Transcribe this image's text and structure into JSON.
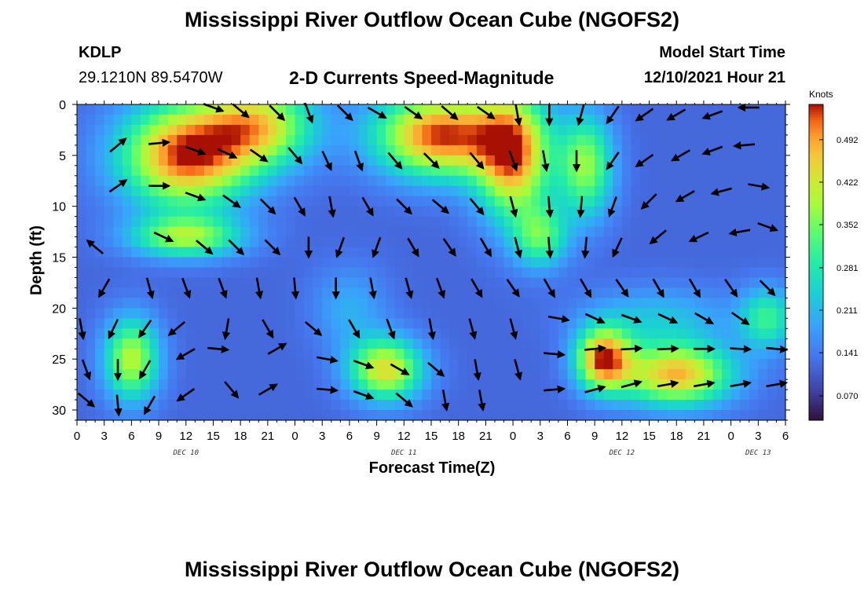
{
  "header": {
    "title": "Mississippi River Outflow Ocean Cube (NGOFS2)",
    "station_id": "KDLP",
    "station_coords": "29.1210N  89.5470W",
    "subtitle": "2-D Currents Speed-Magnitude",
    "model_start_label": "Model Start Time",
    "model_start_value": "12/10/2021 Hour 21"
  },
  "footer": {
    "title": "Mississippi River Outflow Ocean Cube (NGOFS2)"
  },
  "chart_data": {
    "type": "heatmap",
    "xlabel": "Forecast Time(Z)",
    "ylabel": "Depth (ft)",
    "x_tick_labels": [
      "0",
      "3",
      "6",
      "9",
      "12",
      "15",
      "18",
      "21",
      "0",
      "3",
      "6",
      "9",
      "12",
      "15",
      "18",
      "21",
      "0",
      "3",
      "6",
      "9",
      "12",
      "15",
      "18",
      "21",
      "0",
      "3",
      "6"
    ],
    "x_hours": [
      0,
      3,
      6,
      9,
      12,
      15,
      18,
      21,
      24,
      27,
      30,
      33,
      36,
      39,
      42,
      45,
      48,
      51,
      54,
      57,
      60,
      63,
      66,
      69,
      72,
      75,
      78
    ],
    "xlim": [
      0,
      78
    ],
    "date_labels": [
      {
        "text": "DEC 10",
        "hour": 12
      },
      {
        "text": "DEC 11",
        "hour": 36
      },
      {
        "text": "DEC 12",
        "hour": 60
      },
      {
        "text": "DEC 13",
        "hour": 75
      }
    ],
    "y_ticks": [
      0,
      5,
      10,
      15,
      20,
      25,
      30
    ],
    "ylim": [
      0,
      31
    ],
    "y_inverted": true,
    "colorbar": {
      "unit": "Knots",
      "ticks": [
        "0.492",
        "0.422",
        "0.352",
        "0.281",
        "0.211",
        "0.141",
        "0.070"
      ],
      "tick_values": [
        0.492,
        0.422,
        0.352,
        0.281,
        0.211,
        0.141,
        0.07
      ],
      "range": [
        0.03,
        0.55
      ]
    },
    "speed_blobs": [
      {
        "x": 12,
        "y": 5,
        "sx": 7,
        "sy": 5,
        "amp": 0.42
      },
      {
        "x": 20,
        "y": 2,
        "sx": 6,
        "sy": 4,
        "amp": 0.3
      },
      {
        "x": 40,
        "y": 3,
        "sx": 7,
        "sy": 4,
        "amp": 0.42
      },
      {
        "x": 48,
        "y": 5,
        "sx": 4,
        "sy": 6,
        "amp": 0.38
      },
      {
        "x": 56,
        "y": 6,
        "sx": 3,
        "sy": 5,
        "amp": 0.25
      },
      {
        "x": 12,
        "y": 13,
        "sx": 6,
        "sy": 2,
        "amp": 0.25
      },
      {
        "x": 51,
        "y": 13,
        "sx": 3,
        "sy": 3,
        "amp": 0.2
      },
      {
        "x": 58,
        "y": 25,
        "sx": 3,
        "sy": 3,
        "amp": 0.4
      },
      {
        "x": 66,
        "y": 26.5,
        "sx": 6,
        "sy": 3,
        "amp": 0.36
      },
      {
        "x": 34,
        "y": 26,
        "sx": 4,
        "sy": 3,
        "amp": 0.32
      },
      {
        "x": 6,
        "y": 25,
        "sx": 3,
        "sy": 4,
        "amp": 0.28
      },
      {
        "x": 76,
        "y": 21,
        "sx": 3,
        "sy": 3,
        "amp": 0.18
      },
      {
        "x": 64,
        "y": 21,
        "sx": 8,
        "sy": 3,
        "amp": 0.1
      },
      {
        "x": 30,
        "y": 20,
        "sx": 4,
        "sy": 4,
        "amp": 0.08
      }
    ],
    "speed_base": 0.12,
    "vectors": [
      {
        "hour": 15,
        "depth": 0.3,
        "angle": 20
      },
      {
        "hour": 18,
        "depth": 0.6,
        "angle": 40
      },
      {
        "hour": 22,
        "depth": 0.8,
        "angle": 45
      },
      {
        "hour": 25.5,
        "depth": 0.8,
        "angle": 70
      },
      {
        "hour": 29.5,
        "depth": 0.8,
        "angle": 45
      },
      {
        "hour": 33,
        "depth": 0.8,
        "angle": 30
      },
      {
        "hour": 37,
        "depth": 0.8,
        "angle": 35
      },
      {
        "hour": 41,
        "depth": 0.8,
        "angle": 40
      },
      {
        "hour": 45,
        "depth": 0.8,
        "angle": 35
      },
      {
        "hour": 48.5,
        "depth": 1,
        "angle": 80
      },
      {
        "hour": 52,
        "depth": 1,
        "angle": 90
      },
      {
        "hour": 55.5,
        "depth": 1,
        "angle": 105
      },
      {
        "hour": 59,
        "depth": 1,
        "angle": 125
      },
      {
        "hour": 62.5,
        "depth": 1,
        "angle": 145
      },
      {
        "hour": 66,
        "depth": 1,
        "angle": 150
      },
      {
        "hour": 70,
        "depth": 1,
        "angle": 160
      },
      {
        "hour": 74,
        "depth": 0.3,
        "angle": 180
      },
      {
        "hour": 4.5,
        "depth": 4,
        "angle": -40
      },
      {
        "hour": 9,
        "depth": 3.8,
        "angle": -5
      },
      {
        "hour": 13,
        "depth": 4.5,
        "angle": 20
      },
      {
        "hour": 16.5,
        "depth": 4.8,
        "angle": 25
      },
      {
        "hour": 20,
        "depth": 5,
        "angle": 35
      },
      {
        "hour": 24,
        "depth": 5,
        "angle": 50
      },
      {
        "hour": 27.5,
        "depth": 5.5,
        "angle": 65
      },
      {
        "hour": 31,
        "depth": 5.5,
        "angle": 70
      },
      {
        "hour": 35,
        "depth": 5.5,
        "angle": 50
      },
      {
        "hour": 39,
        "depth": 5.5,
        "angle": 45
      },
      {
        "hour": 44,
        "depth": 5.5,
        "angle": 50
      },
      {
        "hour": 48,
        "depth": 5.5,
        "angle": 70
      },
      {
        "hour": 51.5,
        "depth": 5.5,
        "angle": 80
      },
      {
        "hour": 55,
        "depth": 5.5,
        "angle": 90
      },
      {
        "hour": 59,
        "depth": 5.5,
        "angle": 125
      },
      {
        "hour": 62.5,
        "depth": 5.5,
        "angle": 145
      },
      {
        "hour": 66.5,
        "depth": 5,
        "angle": 150
      },
      {
        "hour": 70,
        "depth": 4.5,
        "angle": 160
      },
      {
        "hour": 73.5,
        "depth": 4,
        "angle": 175
      },
      {
        "hour": 4.5,
        "depth": 8,
        "angle": -35
      },
      {
        "hour": 9,
        "depth": 8,
        "angle": 0
      },
      {
        "hour": 13,
        "depth": 9,
        "angle": 20
      },
      {
        "hour": 17,
        "depth": 9.5,
        "angle": 35
      },
      {
        "hour": 21,
        "depth": 10,
        "angle": 45
      },
      {
        "hour": 24.5,
        "depth": 10,
        "angle": 60
      },
      {
        "hour": 28,
        "depth": 10,
        "angle": 80
      },
      {
        "hour": 32,
        "depth": 10,
        "angle": 60
      },
      {
        "hour": 36,
        "depth": 10,
        "angle": 45
      },
      {
        "hour": 40,
        "depth": 10,
        "angle": 40
      },
      {
        "hour": 44,
        "depth": 10,
        "angle": 50
      },
      {
        "hour": 48,
        "depth": 10,
        "angle": 75
      },
      {
        "hour": 52,
        "depth": 10,
        "angle": 85
      },
      {
        "hour": 55.5,
        "depth": 10,
        "angle": 95
      },
      {
        "hour": 59,
        "depth": 10,
        "angle": 110
      },
      {
        "hour": 63,
        "depth": 9.5,
        "angle": 135
      },
      {
        "hour": 67,
        "depth": 9,
        "angle": 150
      },
      {
        "hour": 71,
        "depth": 8.5,
        "angle": 165
      },
      {
        "hour": 75,
        "depth": 8,
        "angle": 10
      },
      {
        "hour": 2,
        "depth": 14,
        "angle": -140
      },
      {
        "hour": 9.5,
        "depth": 13,
        "angle": 25
      },
      {
        "hour": 14,
        "depth": 14,
        "angle": 40
      },
      {
        "hour": 17.5,
        "depth": 14,
        "angle": 45
      },
      {
        "hour": 21.5,
        "depth": 14,
        "angle": 45
      },
      {
        "hour": 25.5,
        "depth": 14,
        "angle": 90
      },
      {
        "hour": 29,
        "depth": 14,
        "angle": 110
      },
      {
        "hour": 33,
        "depth": 14,
        "angle": 110
      },
      {
        "hour": 37,
        "depth": 14,
        "angle": 60
      },
      {
        "hour": 41,
        "depth": 14,
        "angle": 55
      },
      {
        "hour": 45,
        "depth": 14,
        "angle": 60
      },
      {
        "hour": 48.5,
        "depth": 14,
        "angle": 75
      },
      {
        "hour": 52,
        "depth": 14,
        "angle": 85
      },
      {
        "hour": 56,
        "depth": 14,
        "angle": 95
      },
      {
        "hour": 59.5,
        "depth": 14,
        "angle": 115
      },
      {
        "hour": 64,
        "depth": 13,
        "angle": 140
      },
      {
        "hour": 68.5,
        "depth": 13,
        "angle": 155
      },
      {
        "hour": 73,
        "depth": 12.5,
        "angle": 170
      },
      {
        "hour": 76,
        "depth": 12,
        "angle": 20
      },
      {
        "hour": 3,
        "depth": 18,
        "angle": 120
      },
      {
        "hour": 8,
        "depth": 18,
        "angle": 75
      },
      {
        "hour": 12,
        "depth": 18,
        "angle": 70
      },
      {
        "hour": 16,
        "depth": 18,
        "angle": 70
      },
      {
        "hour": 20,
        "depth": 18,
        "angle": 80
      },
      {
        "hour": 24,
        "depth": 18,
        "angle": 85
      },
      {
        "hour": 28.5,
        "depth": 18,
        "angle": 90
      },
      {
        "hour": 32.5,
        "depth": 18,
        "angle": 80
      },
      {
        "hour": 36.5,
        "depth": 18,
        "angle": 75
      },
      {
        "hour": 40,
        "depth": 18,
        "angle": 70
      },
      {
        "hour": 44,
        "depth": 18,
        "angle": 60
      },
      {
        "hour": 48,
        "depth": 18,
        "angle": 55
      },
      {
        "hour": 52,
        "depth": 18,
        "angle": 60
      },
      {
        "hour": 56,
        "depth": 18,
        "angle": 60
      },
      {
        "hour": 60,
        "depth": 18,
        "angle": 55
      },
      {
        "hour": 64,
        "depth": 18,
        "angle": 60
      },
      {
        "hour": 68,
        "depth": 18,
        "angle": 60
      },
      {
        "hour": 72,
        "depth": 18,
        "angle": 55
      },
      {
        "hour": 76,
        "depth": 18,
        "angle": 45
      },
      {
        "hour": 0.5,
        "depth": 22,
        "angle": 80
      },
      {
        "hour": 4,
        "depth": 22,
        "angle": 115
      },
      {
        "hour": 7.5,
        "depth": 22,
        "angle": 125
      },
      {
        "hour": 11,
        "depth": 22,
        "angle": 140
      },
      {
        "hour": 16.5,
        "depth": 22,
        "angle": 100
      },
      {
        "hour": 21,
        "depth": 22,
        "angle": 60
      },
      {
        "hour": 26,
        "depth": 22,
        "angle": 40
      },
      {
        "hour": 30.5,
        "depth": 22,
        "angle": 60
      },
      {
        "hour": 34.5,
        "depth": 22,
        "angle": 70
      },
      {
        "hour": 39,
        "depth": 22,
        "angle": 80
      },
      {
        "hour": 43.5,
        "depth": 22,
        "angle": 75
      },
      {
        "hour": 48,
        "depth": 22,
        "angle": 75
      },
      {
        "hour": 53,
        "depth": 21,
        "angle": 10
      },
      {
        "hour": 57,
        "depth": 21,
        "angle": 25
      },
      {
        "hour": 61,
        "depth": 21,
        "angle": 20
      },
      {
        "hour": 65,
        "depth": 21,
        "angle": 25
      },
      {
        "hour": 69,
        "depth": 21,
        "angle": 30
      },
      {
        "hour": 73,
        "depth": 21,
        "angle": 35
      },
      {
        "hour": 1,
        "depth": 26,
        "angle": 70
      },
      {
        "hour": 4.5,
        "depth": 26,
        "angle": 90
      },
      {
        "hour": 7.5,
        "depth": 26,
        "angle": 120
      },
      {
        "hour": 12,
        "depth": 24.5,
        "angle": 150
      },
      {
        "hour": 15.5,
        "depth": 24,
        "angle": 5
      },
      {
        "hour": 22,
        "depth": 24,
        "angle": -30
      },
      {
        "hour": 27.5,
        "depth": 25,
        "angle": 10
      },
      {
        "hour": 31.5,
        "depth": 25.5,
        "angle": 20
      },
      {
        "hour": 35.5,
        "depth": 26,
        "angle": 30
      },
      {
        "hour": 39.5,
        "depth": 26,
        "angle": 40
      },
      {
        "hour": 44,
        "depth": 26,
        "angle": 80
      },
      {
        "hour": 48.5,
        "depth": 26,
        "angle": 75
      },
      {
        "hour": 52.5,
        "depth": 24.5,
        "angle": 5
      },
      {
        "hour": 57,
        "depth": 24,
        "angle": -5
      },
      {
        "hour": 61,
        "depth": 24,
        "angle": -3
      },
      {
        "hour": 65,
        "depth": 24,
        "angle": -2
      },
      {
        "hour": 69,
        "depth": 24,
        "angle": 0
      },
      {
        "hour": 73,
        "depth": 24,
        "angle": 3
      },
      {
        "hour": 77,
        "depth": 24,
        "angle": 5
      },
      {
        "hour": 1,
        "depth": 29,
        "angle": 40
      },
      {
        "hour": 4.5,
        "depth": 29.5,
        "angle": 85
      },
      {
        "hour": 8,
        "depth": 29.5,
        "angle": 120
      },
      {
        "hour": 12,
        "depth": 28.5,
        "angle": 145
      },
      {
        "hour": 17,
        "depth": 28,
        "angle": 50
      },
      {
        "hour": 21,
        "depth": 28,
        "angle": -30
      },
      {
        "hour": 27.5,
        "depth": 28,
        "angle": 5
      },
      {
        "hour": 31.5,
        "depth": 28.5,
        "angle": 20
      },
      {
        "hour": 36,
        "depth": 29,
        "angle": 40
      },
      {
        "hour": 40.5,
        "depth": 29,
        "angle": 80
      },
      {
        "hour": 44.5,
        "depth": 29,
        "angle": 80
      },
      {
        "hour": 52.5,
        "depth": 28,
        "angle": -5
      },
      {
        "hour": 57,
        "depth": 28,
        "angle": -15
      },
      {
        "hour": 61,
        "depth": 27.5,
        "angle": -15
      },
      {
        "hour": 65,
        "depth": 27.5,
        "angle": -10
      },
      {
        "hour": 69,
        "depth": 27.5,
        "angle": -10
      },
      {
        "hour": 73,
        "depth": 27.5,
        "angle": -10
      },
      {
        "hour": 77,
        "depth": 27.5,
        "angle": -10
      }
    ]
  }
}
